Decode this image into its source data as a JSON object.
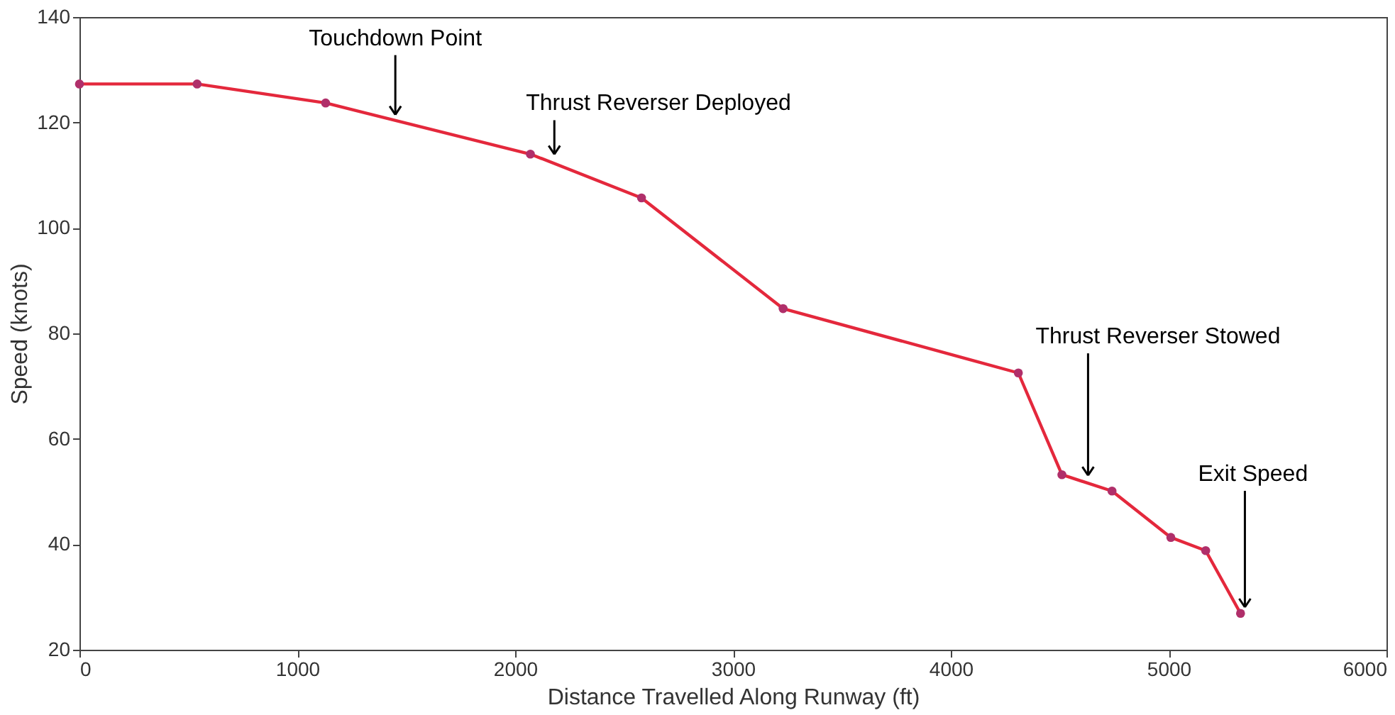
{
  "chart_data": {
    "type": "line",
    "xlabel": "Distance Travelled Along Runway (ft)",
    "ylabel": "Speed (knots)",
    "x": [
      0,
      540,
      1130,
      2070,
      2580,
      3230,
      4310,
      4510,
      4740,
      5010,
      5170,
      5330
    ],
    "series": [
      {
        "color": "#e4283c",
        "values": [
          127.3,
          127.3,
          123.7,
          114,
          105.7,
          84.7,
          72.5,
          53.2,
          50.1,
          41.3,
          38.8,
          26.9
        ]
      }
    ],
    "marker": "circle",
    "line_style": "solid",
    "grid": false,
    "legend": false,
    "xlim": [
      0,
      6000
    ],
    "xticks": [
      0,
      1000,
      2000,
      3000,
      4000,
      5000,
      6000
    ],
    "ylim": [
      20,
      140
    ],
    "yticks": [
      20,
      40,
      60,
      80,
      100,
      120,
      140
    ],
    "annotations": [
      {
        "text": "Touchdown Point",
        "x": 1450,
        "y": 120.4
      },
      {
        "text": "Thrust Reverser Deployed",
        "x": 2180,
        "y": 112.9
      },
      {
        "text": "Thrust Reverser Stowed",
        "x": 4630,
        "y": 52
      },
      {
        "text": "Exit Speed",
        "x": 5350,
        "y": 27
      }
    ]
  }
}
